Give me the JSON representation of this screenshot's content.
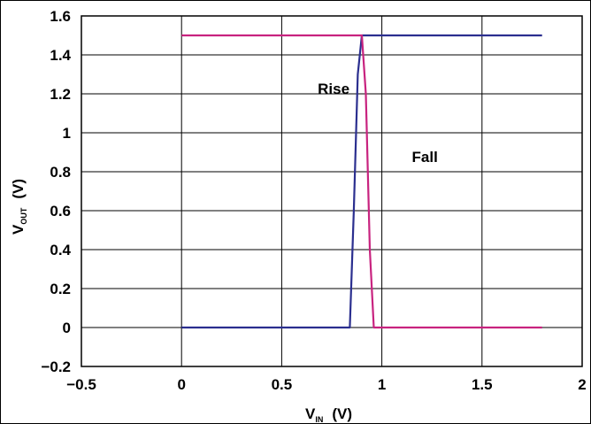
{
  "chart_data": {
    "type": "line",
    "xlabel": {
      "main": "V",
      "sub": "IN",
      "unit": "(V)"
    },
    "ylabel": {
      "main": "V",
      "sub": "OUT",
      "unit": "(V)"
    },
    "xlim": [
      -0.5,
      2
    ],
    "ylim": [
      -0.2,
      1.6
    ],
    "xticks": [
      -0.5,
      0,
      0.5,
      1,
      1.5,
      2
    ],
    "yticks": [
      -0.2,
      0,
      0.2,
      0.4,
      0.6,
      0.8,
      1,
      1.2,
      1.4,
      1.6
    ],
    "xtick_labels": [
      "−0.5",
      "0",
      "0.5",
      "1",
      "1.5",
      "2"
    ],
    "ytick_labels": [
      "−0.2",
      "0",
      "0.2",
      "0.4",
      "0.6",
      "0.8",
      "1",
      "1.2",
      "1.4",
      "1.6"
    ],
    "grid": true,
    "series": [
      {
        "color": "#2b2f8f",
        "x": [
          0,
          0.84,
          0.86,
          0.88,
          0.9,
          1.8
        ],
        "y": [
          0,
          0,
          0.6,
          1.3,
          1.5,
          1.5
        ]
      },
      {
        "color": "#c8237f",
        "x": [
          0,
          0.9,
          0.92,
          0.94,
          0.96,
          1.8
        ],
        "y": [
          1.5,
          1.5,
          1.2,
          0.4,
          0,
          0
        ]
      }
    ],
    "annotations": [
      {
        "text": "Rise",
        "x": 0.68,
        "y": 1.2
      },
      {
        "text": "Fall",
        "x": 1.15,
        "y": 0.85
      }
    ]
  }
}
